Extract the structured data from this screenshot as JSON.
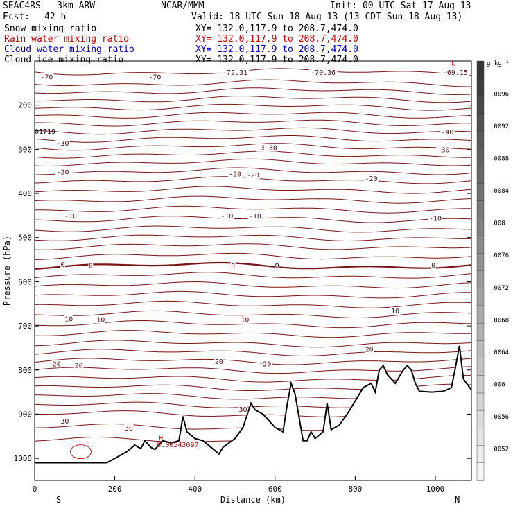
{
  "header": {
    "model": "SEAC4RS   3km ARW",
    "center": "NCAR/MMM",
    "init": "Init: 00 UTC Sat 17 Aug 13",
    "fcst_label": "Fcst:",
    "fcst_value": "42 h",
    "valid": "Valid: 18 UTC Sun 18 Aug 13 (13 CDT Sun 18 Aug 13)"
  },
  "fields": [
    {
      "label": "Snow mixing ratio",
      "xy": "XY= 132.0,117.9 to 208.7,474.0",
      "color": "#000000"
    },
    {
      "label": "Rain water mixing ratio",
      "xy": "XY= 132.0,117.9 to 208.7,474.0",
      "color": "#d40000"
    },
    {
      "label": "Cloud water mixing ratio",
      "xy": "XY= 132.0,117.9 to 208.7,474.0",
      "color": "#0000cc"
    },
    {
      "label": "Cloud ice mixing ratio",
      "xy": "XY= 132.0,117.9 to 208.7,474.0",
      "color": "#000000"
    }
  ],
  "chart_data": {
    "type": "cross-section",
    "xlabel": "Distance (km)",
    "ylabel": "Pressure (hPa)",
    "xlim": [
      0,
      1090
    ],
    "ylim": [
      1050,
      100
    ],
    "x_ticks": [
      0,
      200,
      400,
      600,
      800,
      1000
    ],
    "y_ticks": [
      200,
      300,
      400,
      500,
      600,
      700,
      800,
      900,
      1000
    ],
    "left_end_label": "S",
    "right_end_label": "N",
    "colorbar": {
      "unit": "g kg⁻¹",
      "labels": [
        ".0096",
        ".0092",
        ".0088",
        ".0084",
        ".008",
        ".0076",
        ".0072",
        ".0068",
        ".0064",
        ".006",
        ".0056",
        ".0052"
      ]
    },
    "temperature_contour_labels": [
      "-70",
      "-70",
      "-72.31",
      "-70.36",
      "-69.15",
      "-40",
      "-30",
      "-30",
      "-30",
      "-30",
      "-20",
      "-20",
      "-20",
      "-20",
      "-10",
      "-10",
      "-10",
      "-10",
      "0",
      "0",
      "0",
      "0",
      "0",
      "10",
      "10",
      "10",
      "10",
      "20",
      "20",
      "20",
      "20",
      "20",
      "30",
      "30",
      "30"
    ],
    "terrain_profile": {
      "x": [
        0,
        180,
        200,
        230,
        250,
        265,
        275,
        290,
        300,
        320,
        340,
        360,
        370,
        380,
        400,
        420,
        440,
        460,
        470,
        500,
        520,
        540,
        550,
        570,
        600,
        620,
        630,
        640,
        650,
        670,
        680,
        690,
        700,
        720,
        730,
        740,
        760,
        780,
        800,
        820,
        840,
        850,
        860,
        870,
        880,
        900,
        920,
        930,
        940,
        950,
        960,
        990,
        1020,
        1040,
        1050,
        1060,
        1070,
        1090
      ],
      "y": [
        1010,
        1010,
        1000,
        985,
        970,
        978,
        960,
        975,
        980,
        960,
        965,
        960,
        905,
        940,
        955,
        960,
        975,
        990,
        975,
        955,
        930,
        875,
        890,
        900,
        930,
        940,
        880,
        830,
        855,
        960,
        960,
        940,
        955,
        940,
        875,
        935,
        925,
        900,
        870,
        840,
        830,
        850,
        800,
        790,
        810,
        830,
        800,
        790,
        800,
        830,
        848,
        850,
        848,
        840,
        795,
        745,
        820,
        845
      ]
    },
    "annotations": [
      {
        "text": "01719",
        "x": 0,
        "y": 265
      },
      {
        "text": "H",
        "x": 310,
        "y": 960
      },
      {
        "text": "0.00543097",
        "x": 305,
        "y": 975
      },
      {
        "text": "L",
        "x": 1040,
        "y": 110
      }
    ]
  }
}
